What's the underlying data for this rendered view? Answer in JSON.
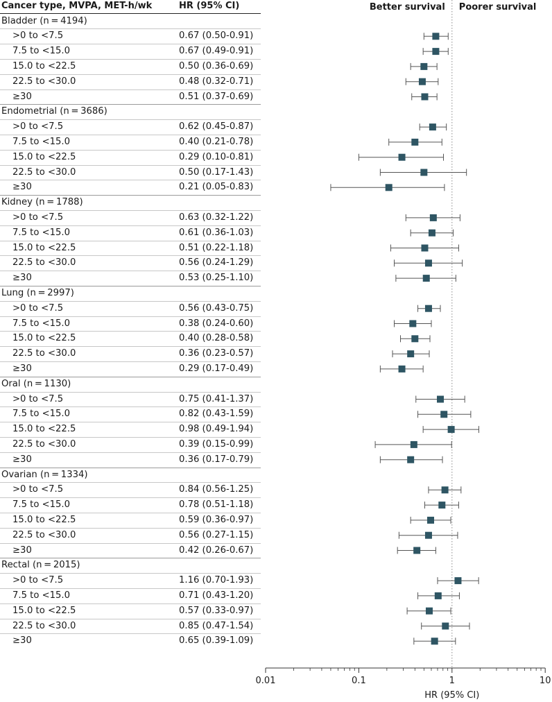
{
  "header": {
    "col_label": "Cancer type, MVPA, MET-h/wk",
    "col_hr": "HR (95% CI)",
    "better": "Better survival",
    "poorer": "Poorer survival"
  },
  "chart_data": {
    "type": "forest",
    "xscale": "log",
    "xlim": [
      0.01,
      10
    ],
    "xticks": [
      0.01,
      0.1,
      1,
      10
    ],
    "xticklabels": [
      "0.01",
      "0.1",
      "1",
      "10"
    ],
    "xlabel": "HR (95% CI)",
    "reference_line": 1,
    "colors": {
      "marker": "#2e5563",
      "whisker": "#555555",
      "refline": "#888888"
    },
    "groups": [
      {
        "label": "Bladder (n = 4194)",
        "rows": [
          {
            "label": ">0 to <7.5",
            "text": "0.67 (0.50-0.91)",
            "hr": 0.67,
            "lo": 0.5,
            "hi": 0.91
          },
          {
            "label": "7.5 to <15.0",
            "text": "0.67 (0.49-0.91)",
            "hr": 0.67,
            "lo": 0.49,
            "hi": 0.91
          },
          {
            "label": "15.0 to <22.5",
            "text": "0.50 (0.36-0.69)",
            "hr": 0.5,
            "lo": 0.36,
            "hi": 0.69
          },
          {
            "label": "22.5 to <30.0",
            "text": "0.48 (0.32-0.71)",
            "hr": 0.48,
            "lo": 0.32,
            "hi": 0.71
          },
          {
            "label": "≥30",
            "text": "0.51 (0.37-0.69)",
            "hr": 0.51,
            "lo": 0.37,
            "hi": 0.69
          }
        ]
      },
      {
        "label": "Endometrial (n = 3686)",
        "rows": [
          {
            "label": ">0 to <7.5",
            "text": "0.62 (0.45-0.87)",
            "hr": 0.62,
            "lo": 0.45,
            "hi": 0.87
          },
          {
            "label": "7.5 to <15.0",
            "text": "0.40 (0.21-0.78)",
            "hr": 0.4,
            "lo": 0.21,
            "hi": 0.78
          },
          {
            "label": "15.0 to <22.5",
            "text": "0.29 (0.10-0.81)",
            "hr": 0.29,
            "lo": 0.1,
            "hi": 0.81
          },
          {
            "label": "22.5 to <30.0",
            "text": "0.50 (0.17-1.43)",
            "hr": 0.5,
            "lo": 0.17,
            "hi": 1.43
          },
          {
            "label": "≥30",
            "text": "0.21 (0.05-0.83)",
            "hr": 0.21,
            "lo": 0.05,
            "hi": 0.83
          }
        ]
      },
      {
        "label": "Kidney (n = 1788)",
        "rows": [
          {
            "label": ">0 to <7.5",
            "text": "0.63 (0.32-1.22)",
            "hr": 0.63,
            "lo": 0.32,
            "hi": 1.22
          },
          {
            "label": "7.5 to <15.0",
            "text": "0.61 (0.36-1.03)",
            "hr": 0.61,
            "lo": 0.36,
            "hi": 1.03
          },
          {
            "label": "15.0 to <22.5",
            "text": "0.51 (0.22-1.18)",
            "hr": 0.51,
            "lo": 0.22,
            "hi": 1.18
          },
          {
            "label": "22.5 to <30.0",
            "text": "0.56 (0.24-1.29)",
            "hr": 0.56,
            "lo": 0.24,
            "hi": 1.29
          },
          {
            "label": "≥30",
            "text": "0.53 (0.25-1.10)",
            "hr": 0.53,
            "lo": 0.25,
            "hi": 1.1
          }
        ]
      },
      {
        "label": "Lung (n = 2997)",
        "rows": [
          {
            "label": ">0 to <7.5",
            "text": "0.56 (0.43-0.75)",
            "hr": 0.56,
            "lo": 0.43,
            "hi": 0.75
          },
          {
            "label": "7.5 to <15.0",
            "text": "0.38 (0.24-0.60)",
            "hr": 0.38,
            "lo": 0.24,
            "hi": 0.6
          },
          {
            "label": "15.0 to <22.5",
            "text": "0.40 (0.28-0.58)",
            "hr": 0.4,
            "lo": 0.28,
            "hi": 0.58
          },
          {
            "label": "22.5 to <30.0",
            "text": "0.36 (0.23-0.57)",
            "hr": 0.36,
            "lo": 0.23,
            "hi": 0.57
          },
          {
            "label": "≥30",
            "text": "0.29 (0.17-0.49)",
            "hr": 0.29,
            "lo": 0.17,
            "hi": 0.49
          }
        ]
      },
      {
        "label": "Oral (n = 1130)",
        "rows": [
          {
            "label": ">0 to <7.5",
            "text": "0.75 (0.41-1.37)",
            "hr": 0.75,
            "lo": 0.41,
            "hi": 1.37
          },
          {
            "label": "7.5 to <15.0",
            "text": "0.82 (0.43-1.59)",
            "hr": 0.82,
            "lo": 0.43,
            "hi": 1.59
          },
          {
            "label": "15.0 to <22.5",
            "text": "0.98 (0.49-1.94)",
            "hr": 0.98,
            "lo": 0.49,
            "hi": 1.94
          },
          {
            "label": "22.5 to <30.0",
            "text": "0.39 (0.15-0.99)",
            "hr": 0.39,
            "lo": 0.15,
            "hi": 0.99
          },
          {
            "label": "≥30",
            "text": "0.36 (0.17-0.79)",
            "hr": 0.36,
            "lo": 0.17,
            "hi": 0.79
          }
        ]
      },
      {
        "label": "Ovarian (n = 1334)",
        "rows": [
          {
            "label": ">0 to <7.5",
            "text": "0.84 (0.56-1.25)",
            "hr": 0.84,
            "lo": 0.56,
            "hi": 1.25
          },
          {
            "label": "7.5 to <15.0",
            "text": "0.78 (0.51-1.18)",
            "hr": 0.78,
            "lo": 0.51,
            "hi": 1.18
          },
          {
            "label": "15.0 to <22.5",
            "text": "0.59 (0.36-0.97)",
            "hr": 0.59,
            "lo": 0.36,
            "hi": 0.97
          },
          {
            "label": "22.5 to <30.0",
            "text": "0.56 (0.27-1.15)",
            "hr": 0.56,
            "lo": 0.27,
            "hi": 1.15
          },
          {
            "label": "≥30",
            "text": "0.42 (0.26-0.67)",
            "hr": 0.42,
            "lo": 0.26,
            "hi": 0.67
          }
        ]
      },
      {
        "label": "Rectal (n = 2015)",
        "rows": [
          {
            "label": ">0 to <7.5",
            "text": "1.16 (0.70-1.93)",
            "hr": 1.16,
            "lo": 0.7,
            "hi": 1.93
          },
          {
            "label": "7.5 to <15.0",
            "text": "0.71 (0.43-1.20)",
            "hr": 0.71,
            "lo": 0.43,
            "hi": 1.2
          },
          {
            "label": "15.0 to <22.5",
            "text": "0.57 (0.33-0.97)",
            "hr": 0.57,
            "lo": 0.33,
            "hi": 0.97
          },
          {
            "label": "22.5 to <30.0",
            "text": "0.85 (0.47-1.54)",
            "hr": 0.85,
            "lo": 0.47,
            "hi": 1.54
          },
          {
            "label": "≥30",
            "text": "0.65 (0.39-1.09)",
            "hr": 0.65,
            "lo": 0.39,
            "hi": 1.09
          }
        ]
      }
    ]
  }
}
